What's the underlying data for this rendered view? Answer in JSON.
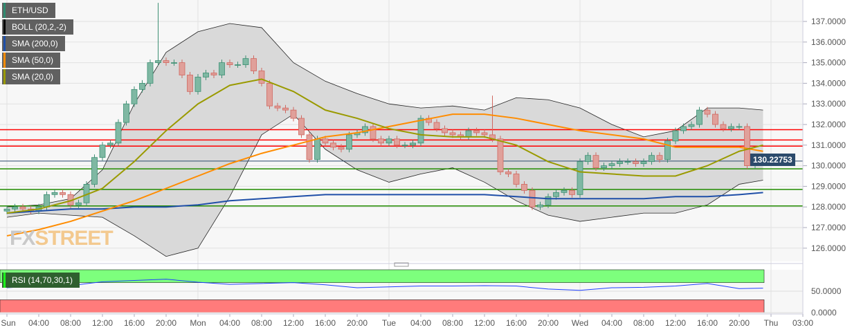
{
  "legend": [
    {
      "label": "ETH/USD",
      "color": "#2e8b6f"
    },
    {
      "label": "BOLL (20,2,-2)",
      "color": "#000000"
    },
    {
      "label": "SMA (200,0)",
      "color": "#1f4fa8"
    },
    {
      "label": "SMA (50,0)",
      "color": "#ff8c00"
    },
    {
      "label": "SMA (20,0)",
      "color": "#9a9a00"
    }
  ],
  "rsi_label": "RSI (14,70,30,1)",
  "current_price": "130.22753",
  "logo": "FXSTREET",
  "chart_data": {
    "type": "candlestick",
    "title": "ETH/USD",
    "ylim": [
      125.5,
      138
    ],
    "y_ticks": [
      "126.0000",
      "127.0000",
      "128.0000",
      "129.0000",
      "130.0000",
      "131.0000",
      "132.0000",
      "133.0000",
      "134.0000",
      "135.0000",
      "136.0000",
      "137.0000"
    ],
    "x_ticks": [
      "Sun",
      "04:00",
      "08:00",
      "12:00",
      "16:00",
      "20:00",
      "Mon",
      "04:00",
      "08:00",
      "12:00",
      "16:00",
      "20:00",
      "Tue",
      "04:00",
      "08:00",
      "12:00",
      "16:00",
      "20:00",
      "Wed",
      "04:00",
      "08:00",
      "12:00",
      "16:00",
      "20:00",
      "Thu",
      "03:00"
    ],
    "closes": [
      127.9,
      128.0,
      127.9,
      127.8,
      128.0,
      128.6,
      128.7,
      128.6,
      128.1,
      128.2,
      129.1,
      130.4,
      131.0,
      131.1,
      132.1,
      133.0,
      133.7,
      134.0,
      135.0,
      135.1,
      135.0,
      135.0,
      134.4,
      133.6,
      134.3,
      134.5,
      134.4,
      135.0,
      134.9,
      134.9,
      135.2,
      134.6,
      134.0,
      132.9,
      132.8,
      132.7,
      132.3,
      131.5,
      130.3,
      131.3,
      131.1,
      130.9,
      130.8,
      131.5,
      131.6,
      131.9,
      131.3,
      131.1,
      131.3,
      131.0,
      131.0,
      131.1,
      132.3,
      132.1,
      131.8,
      131.6,
      131.5,
      131.4,
      131.7,
      131.6,
      131.5,
      131.3,
      129.7,
      129.6,
      129.1,
      128.8,
      128.0,
      128.1,
      128.5,
      128.7,
      128.8,
      128.6,
      130.2,
      130.5,
      129.9,
      130.0,
      130.1,
      130.2,
      130.2,
      130.1,
      130.2,
      130.5,
      130.3,
      131.2,
      131.7,
      131.9,
      132.0,
      132.7,
      132.5,
      132.0,
      131.8,
      131.9,
      131.9,
      130.0,
      130.3,
      130.2
    ],
    "wick_highs": {
      "19": 137.9,
      "61": 133.4
    },
    "line_step_hours": 4,
    "sma20": [
      127.7,
      127.9,
      128.3,
      128.9,
      130.2,
      131.7,
      133.0,
      133.9,
      134.2,
      133.6,
      132.7,
      132.3,
      131.8,
      131.5,
      131.4,
      131.4,
      131.0,
      130.2,
      129.7,
      129.6,
      129.5,
      129.5,
      130.0,
      130.7,
      131.0
    ],
    "sma50": [
      126.6,
      126.9,
      127.3,
      127.8,
      128.3,
      128.9,
      129.5,
      130.1,
      130.6,
      131.0,
      131.4,
      131.6,
      131.9,
      132.2,
      132.5,
      132.5,
      132.3,
      132.0,
      131.7,
      131.5,
      131.3,
      130.9,
      130.9,
      130.9,
      130.7
    ],
    "sma200": [
      127.7,
      127.8,
      127.9,
      127.9,
      128.0,
      128.0,
      128.1,
      128.3,
      128.4,
      128.5,
      128.6,
      128.6,
      128.6,
      128.6,
      128.6,
      128.6,
      128.5,
      128.4,
      128.4,
      128.4,
      128.4,
      128.5,
      128.5,
      128.6,
      128.7
    ],
    "boll_upper": [
      128.0,
      128.1,
      128.4,
      129.8,
      133.0,
      135.5,
      136.5,
      136.9,
      136.7,
      135.0,
      134.1,
      133.5,
      133.0,
      132.8,
      132.9,
      132.7,
      133.3,
      133.2,
      132.8,
      132.0,
      131.4,
      131.7,
      132.8,
      132.8,
      132.7
    ],
    "boll_lower": [
      127.5,
      127.7,
      127.6,
      127.5,
      126.6,
      125.6,
      126.0,
      128.5,
      131.5,
      132.5,
      130.8,
      129.8,
      129.2,
      129.6,
      129.9,
      129.2,
      128.3,
      127.6,
      127.3,
      127.5,
      127.7,
      127.7,
      128.1,
      129.1,
      129.3
    ],
    "resistance_levels": [
      131.75,
      131.25,
      130.95
    ],
    "support_levels": [
      129.85,
      128.85,
      128.05
    ],
    "rsi": {
      "ylim": [
        0,
        100
      ],
      "ticks": [
        "50.0000",
        "0.0000"
      ],
      "overbought": 70,
      "oversold": 30,
      "values": [
        58,
        62,
        63,
        72,
        75,
        78,
        71,
        66,
        68,
        70,
        65,
        58,
        60,
        62,
        62,
        63,
        62,
        55,
        52,
        58,
        59,
        62,
        68,
        56,
        57
      ]
    }
  }
}
